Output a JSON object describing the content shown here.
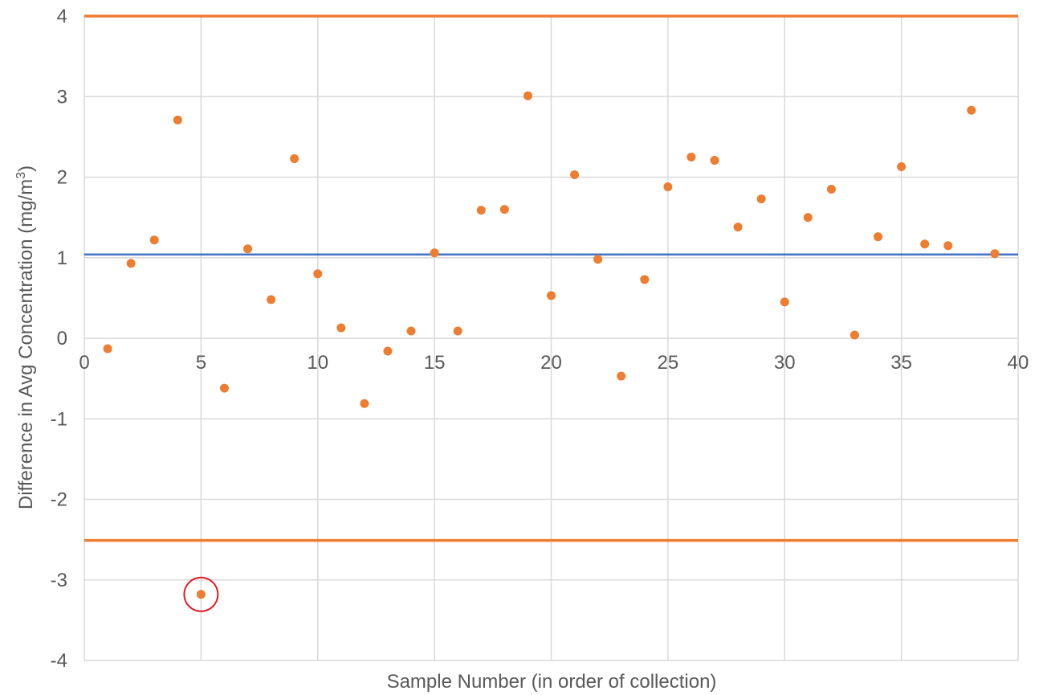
{
  "chart_data": {
    "type": "scatter",
    "xlabel": "Sample Number (in order of collection)",
    "ylabel_main": "Difference in Avg Concentration (mg/m",
    "ylabel_sup": "3",
    "ylabel_end": ")",
    "xlim": [
      0,
      40
    ],
    "ylim": [
      -4,
      4
    ],
    "x_ticks": [
      0,
      5,
      10,
      15,
      20,
      25,
      30,
      35,
      40
    ],
    "y_ticks": [
      4,
      3,
      2,
      1,
      0,
      -1,
      -2,
      -3,
      -4
    ],
    "grid": true,
    "series": [
      {
        "points": [
          [
            1,
            -0.13
          ],
          [
            2,
            0.93
          ],
          [
            3,
            1.22
          ],
          [
            4,
            2.71
          ],
          [
            5,
            -3.18
          ],
          [
            6,
            -0.62
          ],
          [
            7,
            1.11
          ],
          [
            8,
            0.48
          ],
          [
            9,
            2.23
          ],
          [
            10,
            0.8
          ],
          [
            11,
            0.13
          ],
          [
            12,
            -0.81
          ],
          [
            13,
            -0.16
          ],
          [
            14,
            0.09
          ],
          [
            15,
            1.06
          ],
          [
            16,
            0.09
          ],
          [
            17,
            1.59
          ],
          [
            18,
            1.6
          ],
          [
            19,
            3.01
          ],
          [
            20,
            0.53
          ],
          [
            21,
            2.03
          ],
          [
            22,
            0.98
          ],
          [
            23,
            -0.47
          ],
          [
            24,
            0.73
          ],
          [
            25,
            1.88
          ],
          [
            26,
            2.25
          ],
          [
            27,
            2.21
          ],
          [
            28,
            1.38
          ],
          [
            29,
            1.73
          ],
          [
            30,
            0.45
          ],
          [
            31,
            1.5
          ],
          [
            32,
            1.85
          ],
          [
            33,
            0.04
          ],
          [
            34,
            1.26
          ],
          [
            35,
            2.13
          ],
          [
            36,
            1.17
          ],
          [
            37,
            1.15
          ],
          [
            38,
            2.83
          ],
          [
            39,
            1.05
          ]
        ]
      }
    ],
    "reference_lines": [
      {
        "y": 4.0
      },
      {
        "y": 1.04
      },
      {
        "y": -2.51
      }
    ],
    "highlight": {
      "x": 5,
      "y": -3.18
    },
    "colors": {
      "points": "#ED7D31",
      "limit_lines": "#ED7D31",
      "mean_line": "#4472C4",
      "highlight_circle": "#E31B23",
      "grid": "#D9D9D9",
      "text": "#595959"
    }
  }
}
